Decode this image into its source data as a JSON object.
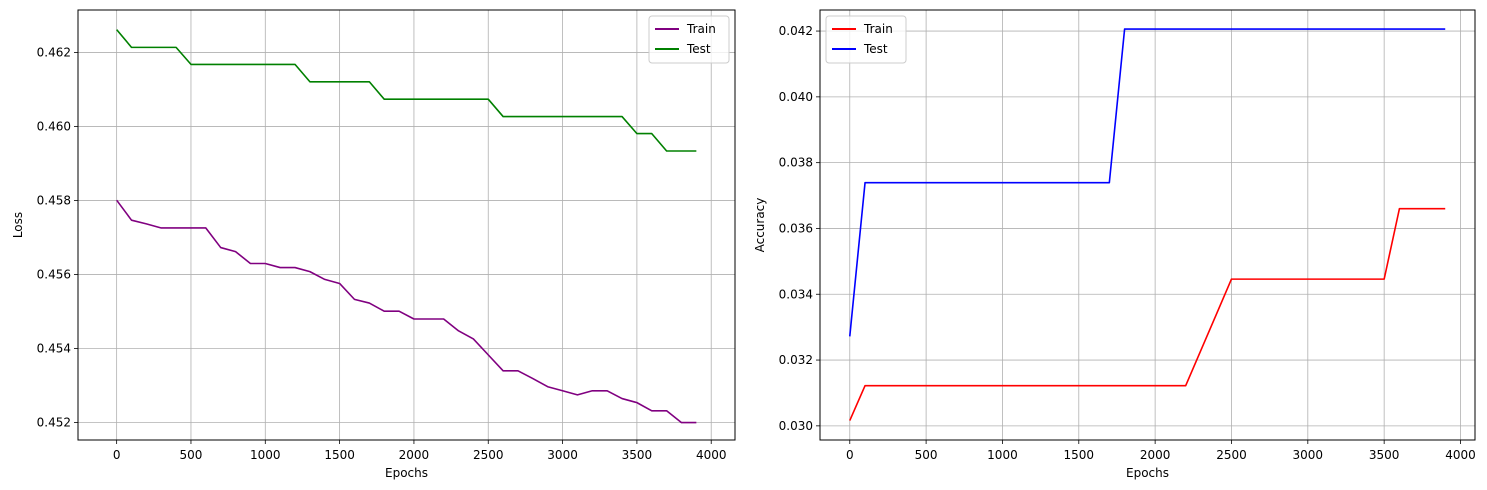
{
  "chart_data": [
    {
      "type": "line",
      "xlabel": "Epochs",
      "ylabel": "Loss",
      "grid": true,
      "legend_placement": "upper right",
      "xlim": [
        -260,
        4160
      ],
      "ylim": [
        0.45153,
        0.46315
      ],
      "xticks": [
        0,
        500,
        1000,
        1500,
        2000,
        2500,
        3000,
        3500,
        4000
      ],
      "xtick_labels": [
        "0",
        "500",
        "1000",
        "1500",
        "2000",
        "2500",
        "3000",
        "3500",
        "4000"
      ],
      "yticks": [
        0.452,
        0.454,
        0.456,
        0.458,
        0.46,
        0.462
      ],
      "ytick_labels": [
        "0.452",
        "0.454",
        "0.456",
        "0.458",
        "0.460",
        "0.462"
      ],
      "x": [
        0,
        100,
        200,
        300,
        400,
        500,
        600,
        700,
        800,
        900,
        1000,
        1100,
        1200,
        1300,
        1400,
        1500,
        1600,
        1700,
        1800,
        1900,
        2000,
        2100,
        2200,
        2300,
        2400,
        2500,
        2600,
        2700,
        2800,
        2900,
        3000,
        3100,
        3200,
        3300,
        3400,
        3500,
        3600,
        3700,
        3800,
        3900
      ],
      "series": [
        {
          "name": "Train",
          "color": "#800080",
          "values": [
            0.45801,
            0.45747,
            0.45737,
            0.45726,
            0.45726,
            0.45726,
            0.45726,
            0.45673,
            0.45662,
            0.4563,
            0.4563,
            0.45619,
            0.45619,
            0.45608,
            0.45587,
            0.45576,
            0.45533,
            0.45523,
            0.45501,
            0.45501,
            0.4548,
            0.4548,
            0.4548,
            0.45448,
            0.45426,
            0.45383,
            0.4534,
            0.4534,
            0.45319,
            0.45297,
            0.45286,
            0.45275,
            0.45286,
            0.45286,
            0.45265,
            0.45254,
            0.45232,
            0.45232,
            0.452,
            0.452
          ]
        },
        {
          "name": "Test",
          "color": "#008000",
          "values": [
            0.46262,
            0.46214,
            0.46214,
            0.46214,
            0.46214,
            0.46168,
            0.46168,
            0.46168,
            0.46168,
            0.46168,
            0.46168,
            0.46168,
            0.46168,
            0.46121,
            0.46121,
            0.46121,
            0.46121,
            0.46121,
            0.46074,
            0.46074,
            0.46074,
            0.46074,
            0.46074,
            0.46074,
            0.46074,
            0.46074,
            0.46027,
            0.46027,
            0.46027,
            0.46027,
            0.46027,
            0.46027,
            0.46027,
            0.46027,
            0.46027,
            0.45981,
            0.45981,
            0.45934,
            0.45934,
            0.45934
          ]
        }
      ]
    },
    {
      "type": "line",
      "xlabel": "Epochs",
      "ylabel": "Accuracy",
      "grid": true,
      "legend_placement": "upper left",
      "xlim": [
        -195,
        4095
      ],
      "ylim": [
        0.02957,
        0.04264
      ],
      "xticks": [
        0,
        500,
        1000,
        1500,
        2000,
        2500,
        3000,
        3500,
        4000
      ],
      "xtick_labels": [
        "0",
        "500",
        "1000",
        "1500",
        "2000",
        "2500",
        "3000",
        "3500",
        "4000"
      ],
      "yticks": [
        0.03,
        0.032,
        0.034,
        0.036,
        0.038,
        0.04,
        0.042
      ],
      "ytick_labels": [
        "0.030",
        "0.032",
        "0.034",
        "0.036",
        "0.038",
        "0.040",
        "0.042"
      ],
      "x": [
        0,
        100,
        200,
        300,
        400,
        500,
        600,
        700,
        800,
        900,
        1000,
        1100,
        1200,
        1300,
        1400,
        1500,
        1600,
        1700,
        1800,
        1900,
        2000,
        2100,
        2200,
        2300,
        2400,
        2500,
        2600,
        2700,
        2800,
        2900,
        3000,
        3100,
        3200,
        3300,
        3400,
        3500,
        3600,
        3700,
        3800,
        3900
      ],
      "series": [
        {
          "name": "Train",
          "color": "#ff0000",
          "values": [
            0.03016,
            0.03122,
            0.03122,
            0.03122,
            0.03122,
            0.03122,
            0.03122,
            0.03122,
            0.03122,
            0.03122,
            0.03122,
            0.03122,
            0.03122,
            0.03122,
            0.03122,
            0.03122,
            0.03122,
            0.03122,
            0.03122,
            0.03122,
            0.03122,
            0.03122,
            0.03122,
            0.0323,
            0.03338,
            0.03446,
            0.03446,
            0.03446,
            0.03446,
            0.03446,
            0.03446,
            0.03446,
            0.03446,
            0.03446,
            0.03446,
            0.03446,
            0.0366,
            0.0366,
            0.0366,
            0.0366
          ]
        },
        {
          "name": "Test",
          "color": "#0000ff",
          "values": [
            0.03272,
            0.03739,
            0.03739,
            0.03739,
            0.03739,
            0.03739,
            0.03739,
            0.03739,
            0.03739,
            0.03739,
            0.03739,
            0.03739,
            0.03739,
            0.03739,
            0.03739,
            0.03739,
            0.03739,
            0.03739,
            0.04206,
            0.04206,
            0.04206,
            0.04206,
            0.04206,
            0.04206,
            0.04206,
            0.04206,
            0.04206,
            0.04206,
            0.04206,
            0.04206,
            0.04206,
            0.04206,
            0.04206,
            0.04206,
            0.04206,
            0.04206,
            0.04206,
            0.04206,
            0.04206,
            0.04206
          ]
        }
      ]
    }
  ]
}
